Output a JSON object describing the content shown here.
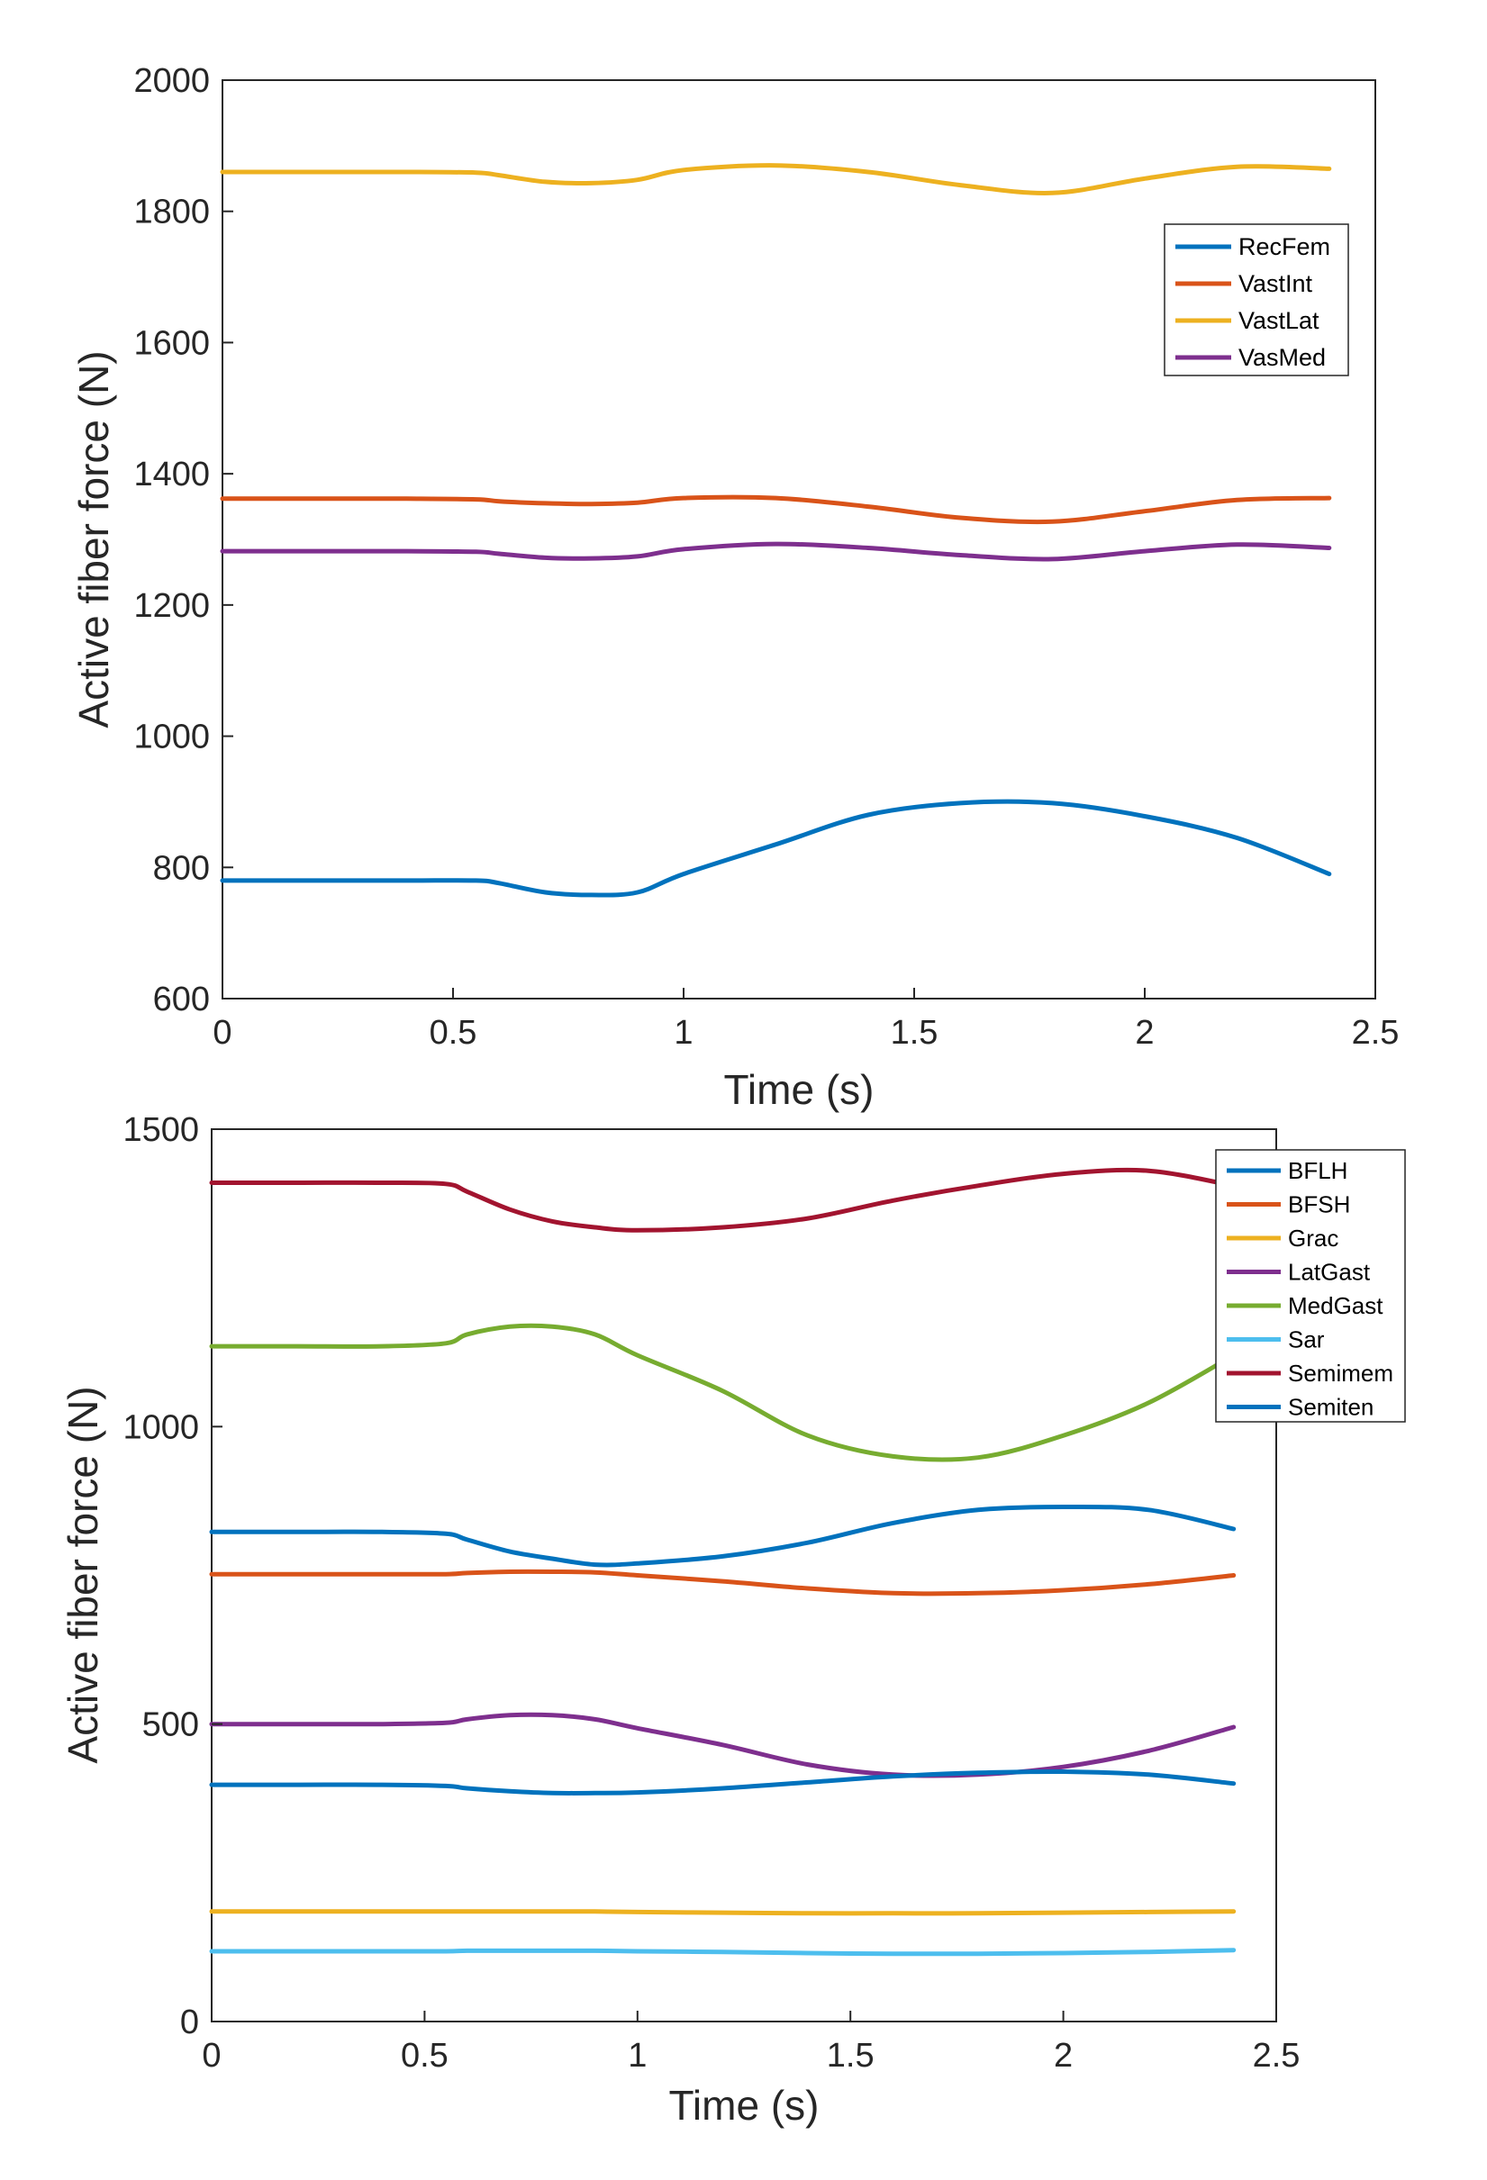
{
  "chart_data": [
    {
      "type": "line",
      "title": "",
      "xlabel": "Time (s)",
      "ylabel": "Active fiber force (N)",
      "xlim": [
        0,
        2.5
      ],
      "ylim": [
        600,
        2000
      ],
      "xticks": [
        "0",
        "0.5",
        "1",
        "1.5",
        "2",
        "2.5"
      ],
      "yticks": [
        "600",
        "800",
        "1000",
        "1200",
        "1400",
        "1600",
        "1800",
        "2000"
      ],
      "legend_position": "upper-right",
      "x": [
        0,
        0.2,
        0.4,
        0.55,
        0.6,
        0.7,
        0.8,
        0.9,
        1.0,
        1.2,
        1.4,
        1.6,
        1.8,
        2.0,
        2.2,
        2.4
      ],
      "series": [
        {
          "name": "RecFem",
          "color": "#0072BD",
          "values": [
            780,
            780,
            780,
            780,
            776,
            762,
            758,
            762,
            790,
            835,
            880,
            898,
            898,
            878,
            845,
            790
          ]
        },
        {
          "name": "VastInt",
          "color": "#D95319",
          "values": [
            1362,
            1362,
            1362,
            1361,
            1358,
            1355,
            1354,
            1356,
            1363,
            1363,
            1350,
            1333,
            1327,
            1343,
            1360,
            1363
          ]
        },
        {
          "name": "VastLat",
          "color": "#EDB120",
          "values": [
            1860,
            1860,
            1860,
            1859,
            1855,
            1845,
            1843,
            1848,
            1863,
            1870,
            1860,
            1840,
            1828,
            1850,
            1868,
            1865
          ]
        },
        {
          "name": "VasMed",
          "color": "#7E2F8E",
          "values": [
            1282,
            1282,
            1282,
            1281,
            1278,
            1272,
            1271,
            1274,
            1285,
            1293,
            1287,
            1276,
            1270,
            1282,
            1292,
            1287
          ]
        }
      ]
    },
    {
      "type": "line",
      "title": "",
      "xlabel": "Time (s)",
      "ylabel": "Active fiber force (N)",
      "xlim": [
        0,
        2.5
      ],
      "ylim": [
        0,
        1500
      ],
      "xticks": [
        "0",
        "0.5",
        "1",
        "1.5",
        "2",
        "2.5"
      ],
      "yticks": [
        "0",
        "500",
        "1000",
        "1500"
      ],
      "legend_position": "upper-right",
      "x": [
        0,
        0.2,
        0.4,
        0.55,
        0.6,
        0.7,
        0.8,
        0.9,
        1.0,
        1.2,
        1.4,
        1.6,
        1.8,
        2.0,
        2.2,
        2.4
      ],
      "series": [
        {
          "name": "BFLH",
          "color": "#0072BD",
          "values": [
            823,
            823,
            823,
            820,
            810,
            790,
            778,
            768,
            770,
            782,
            805,
            838,
            860,
            865,
            860,
            828
          ]
        },
        {
          "name": "BFSH",
          "color": "#D95319",
          "values": [
            752,
            752,
            752,
            752,
            754,
            756,
            756,
            755,
            750,
            740,
            728,
            720,
            720,
            725,
            735,
            750
          ]
        },
        {
          "name": "Grac",
          "color": "#EDB120",
          "values": [
            185,
            185,
            185,
            185,
            185,
            185,
            185,
            185,
            184,
            183,
            182,
            182,
            182,
            183,
            184,
            185
          ]
        },
        {
          "name": "LatGast",
          "color": "#7E2F8E",
          "values": [
            500,
            500,
            500,
            502,
            508,
            515,
            515,
            508,
            493,
            465,
            432,
            415,
            415,
            428,
            455,
            495
          ]
        },
        {
          "name": "MedGast",
          "color": "#77AC30",
          "values": [
            1135,
            1135,
            1135,
            1140,
            1155,
            1168,
            1168,
            1155,
            1120,
            1060,
            985,
            950,
            948,
            985,
            1040,
            1120
          ]
        },
        {
          "name": "Sar",
          "color": "#4DBEEE",
          "values": [
            118,
            118,
            118,
            118,
            119,
            119,
            119,
            119,
            118,
            117,
            115,
            114,
            114,
            115,
            117,
            120
          ]
        },
        {
          "name": "Semimem",
          "color": "#A2142F",
          "values": [
            1410,
            1410,
            1410,
            1408,
            1395,
            1365,
            1345,
            1335,
            1330,
            1335,
            1350,
            1380,
            1405,
            1425,
            1430,
            1405
          ]
        },
        {
          "name": "Semiten",
          "color": "#0072BD",
          "values": [
            398,
            398,
            398,
            396,
            392,
            387,
            384,
            384,
            385,
            392,
            402,
            412,
            418,
            420,
            415,
            400
          ]
        }
      ]
    }
  ]
}
